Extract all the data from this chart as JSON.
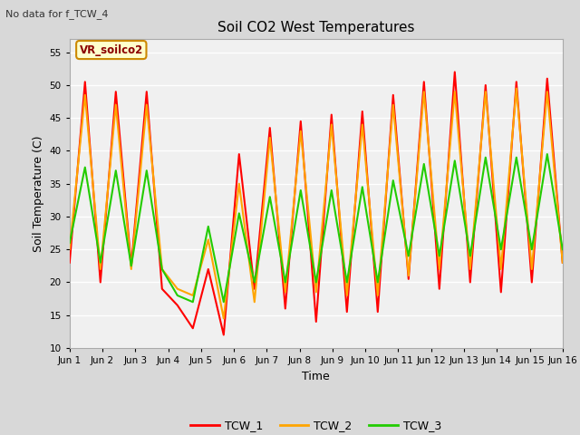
{
  "title": "Soil CO2 West Temperatures",
  "subtitle": "No data for f_TCW_4",
  "xlabel": "Time",
  "ylabel": "Soil Temperature (C)",
  "ylim": [
    10,
    57
  ],
  "yticks": [
    10,
    15,
    20,
    25,
    30,
    35,
    40,
    45,
    50,
    55
  ],
  "x_labels": [
    "Jun 1",
    "Jun 2",
    "Jun 3",
    "Jun 4",
    "Jun 5",
    "Jun 6",
    "Jun 7",
    "Jun 8",
    "Jun 9",
    "Jun 10",
    "Jun 11",
    "Jun 12",
    "Jun 13",
    "Jun 14",
    "Jun 15",
    "Jun 16"
  ],
  "annotation_text": "VR_soilco2",
  "line_colors": {
    "TCW_1": "#ff0000",
    "TCW_2": "#ffa500",
    "TCW_3": "#22cc00"
  },
  "line_width": 1.5,
  "bg_color": "#d8d8d8",
  "plot_bg_color": "#f0f0f0",
  "grid_color": "#ffffff",
  "TCW_1": [
    23,
    50.5,
    20,
    49,
    22.5,
    49,
    19,
    16.5,
    13,
    22,
    12,
    39.5,
    19,
    43.5,
    16,
    44.5,
    14,
    45.5,
    15.5,
    46,
    15.5,
    48.5,
    20.5,
    50.5,
    19,
    52,
    20,
    50,
    18.5,
    50.5,
    20,
    51,
    23
  ],
  "TCW_2": [
    25,
    48.5,
    22,
    47,
    22,
    47,
    22,
    19,
    18,
    26.5,
    14.5,
    35,
    17,
    42,
    18.5,
    43,
    18.5,
    44,
    18,
    44,
    18,
    47,
    21,
    49,
    22,
    49,
    22,
    49,
    22,
    49.5,
    22,
    49,
    23
  ],
  "TCW_3": [
    26,
    37.5,
    23,
    37,
    22.5,
    37,
    22,
    18,
    17,
    28.5,
    17,
    30.5,
    20,
    33,
    20,
    34,
    20,
    34,
    20,
    34.5,
    20,
    35.5,
    24,
    38,
    24,
    38.5,
    24,
    39,
    25,
    39,
    25,
    39.5,
    25
  ]
}
